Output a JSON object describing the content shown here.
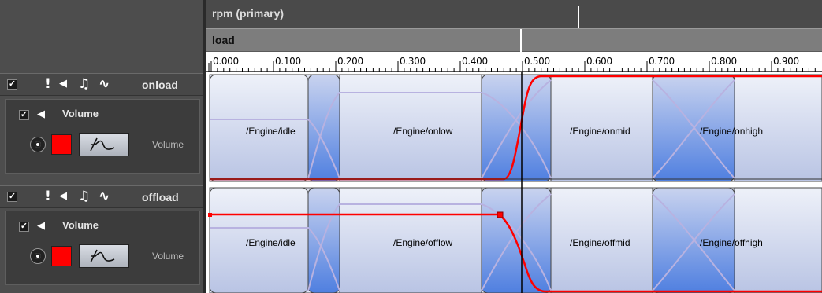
{
  "parameters": {
    "primary_label": "rpm (primary)",
    "secondary_label": "load"
  },
  "ruler": {
    "labels": [
      "0.000",
      "0.100",
      "0.200",
      "0.300",
      "0.400",
      "0.500",
      "0.600",
      "0.700",
      "0.800",
      "0.900"
    ]
  },
  "events": [
    {
      "name": "onload",
      "layer": {
        "name": "Volume",
        "effect_label": "Volume"
      },
      "sounds": [
        "/Engine/idle",
        "/Engine/onlow",
        "/Engine/onmid",
        "/Engine/onhigh"
      ]
    },
    {
      "name": "offload",
      "layer": {
        "name": "Volume",
        "effect_label": "Volume"
      },
      "sounds": [
        "/Engine/idle",
        "/Engine/offlow",
        "/Engine/offmid",
        "/Engine/offhigh"
      ]
    }
  ],
  "icons": {
    "checkbox_checked": "☑",
    "warning": "!",
    "speaker": "◀",
    "note": "♫",
    "effect": "effect-curve-icon"
  },
  "colors": {
    "panel_bg": "#4d4d4d",
    "sound_block": "#c9d1ea",
    "crossfade": "#6f95e0",
    "curve": "#ff0000",
    "cursor": "#000000"
  }
}
